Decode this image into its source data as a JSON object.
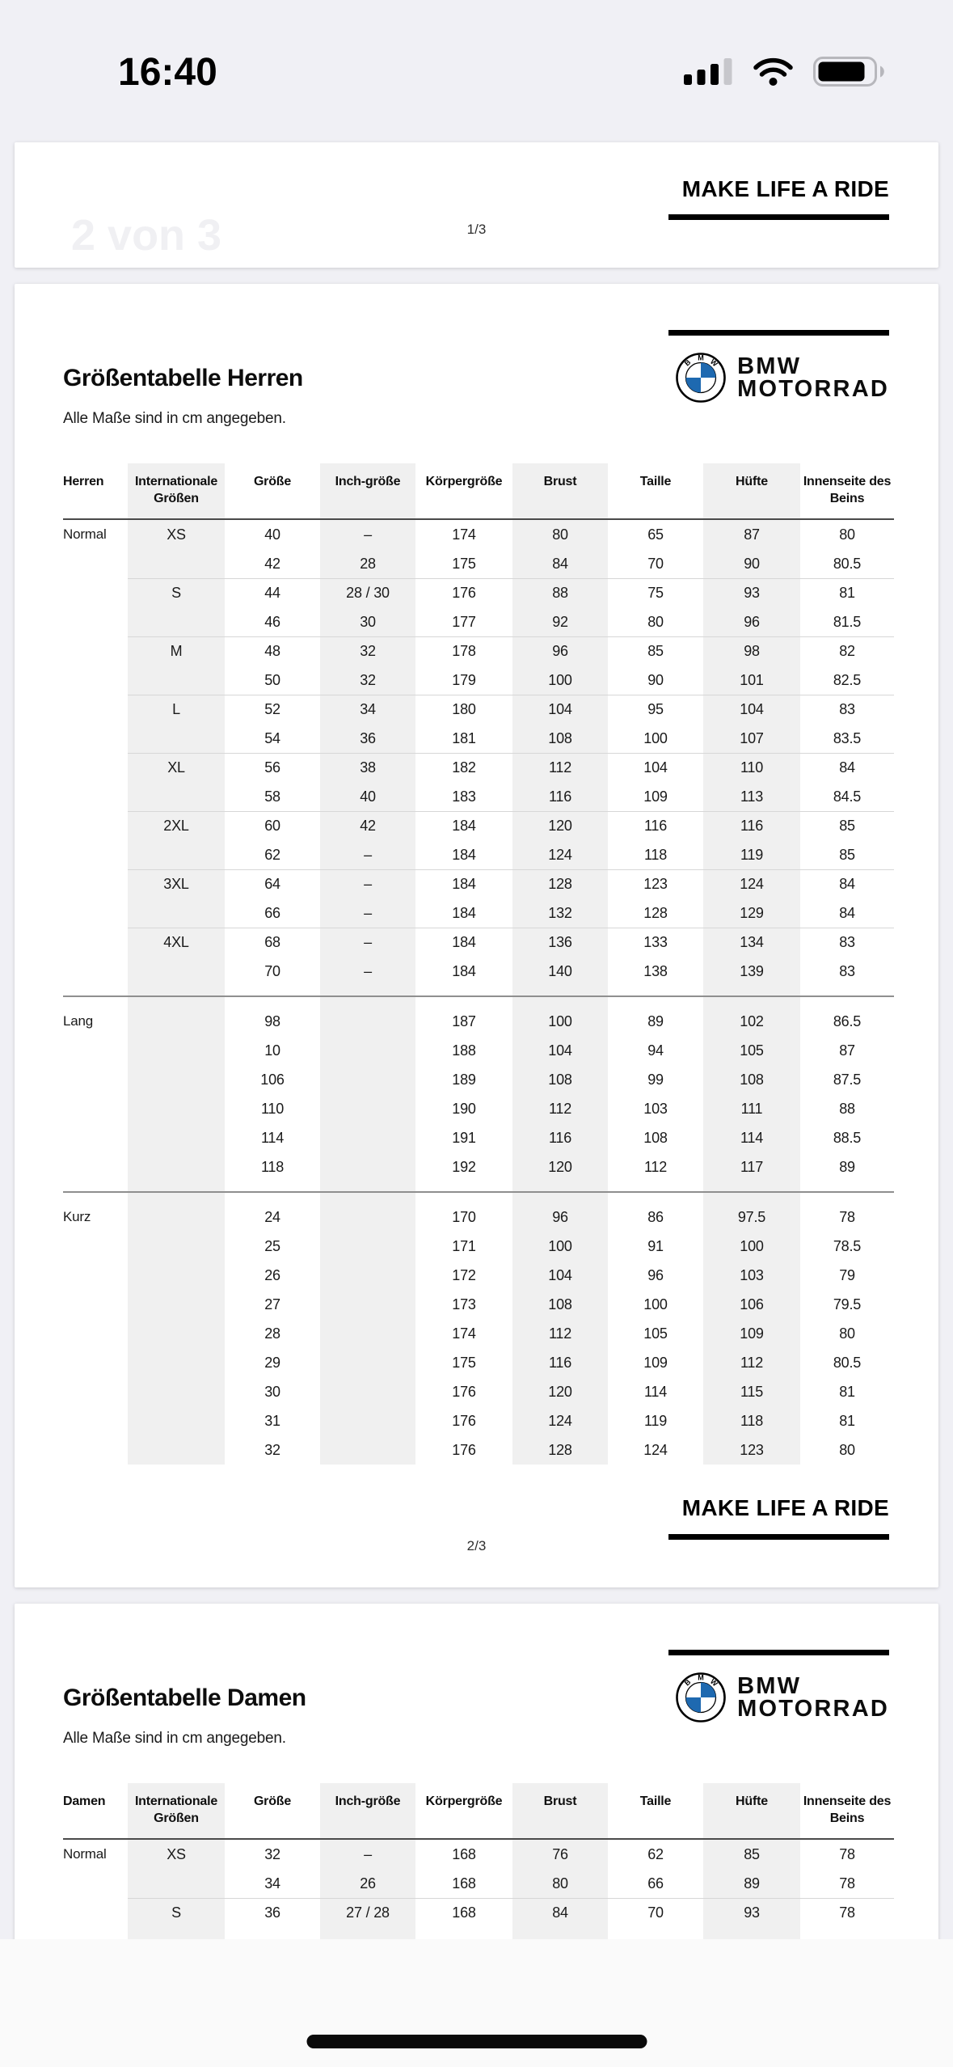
{
  "status_bar": {
    "time": "16:40"
  },
  "viewer": {
    "page_position_overlay": "2 von 3"
  },
  "brand": {
    "name": "BMW",
    "division": "MOTORRAD",
    "roundel_letters": [
      "B",
      "M",
      "W"
    ],
    "blue": "#1e69b0"
  },
  "page1": {
    "slogan": "MAKE LIFE A RIDE",
    "page_number": "1/3"
  },
  "page2": {
    "title": "Größentabelle Herren",
    "note": "Alle Maße sind in cm angegeben.",
    "slogan": "MAKE LIFE A RIDE",
    "page_number": "2/3",
    "table": {
      "headers": [
        "Herren",
        "Internationale Größen",
        "Größe",
        "Inch-größe",
        "Körpergröße",
        "Brust",
        "Taille",
        "Hüfte",
        "Innenseite des Beins"
      ],
      "sections": [
        {
          "name": "Normal",
          "rows": [
            [
              "Normal",
              "XS",
              "40",
              "–",
              "174",
              "80",
              "65",
              "87",
              "80"
            ],
            [
              "",
              "",
              "42",
              "28",
              "175",
              "84",
              "70",
              "90",
              "80.5"
            ],
            [
              "",
              "S",
              "44",
              "28 / 30",
              "176",
              "88",
              "75",
              "93",
              "81"
            ],
            [
              "",
              "",
              "46",
              "30",
              "177",
              "92",
              "80",
              "96",
              "81.5"
            ],
            [
              "",
              "M",
              "48",
              "32",
              "178",
              "96",
              "85",
              "98",
              "82"
            ],
            [
              "",
              "",
              "50",
              "32",
              "179",
              "100",
              "90",
              "101",
              "82.5"
            ],
            [
              "",
              "L",
              "52",
              "34",
              "180",
              "104",
              "95",
              "104",
              "83"
            ],
            [
              "",
              "",
              "54",
              "36",
              "181",
              "108",
              "100",
              "107",
              "83.5"
            ],
            [
              "",
              "XL",
              "56",
              "38",
              "182",
              "112",
              "104",
              "110",
              "84"
            ],
            [
              "",
              "",
              "58",
              "40",
              "183",
              "116",
              "109",
              "113",
              "84.5"
            ],
            [
              "",
              "2XL",
              "60",
              "42",
              "184",
              "120",
              "116",
              "116",
              "85"
            ],
            [
              "",
              "",
              "62",
              "–",
              "184",
              "124",
              "118",
              "119",
              "85"
            ],
            [
              "",
              "3XL",
              "64",
              "–",
              "184",
              "128",
              "123",
              "124",
              "84"
            ],
            [
              "",
              "",
              "66",
              "–",
              "184",
              "132",
              "128",
              "129",
              "84"
            ],
            [
              "",
              "4XL",
              "68",
              "–",
              "184",
              "136",
              "133",
              "134",
              "83"
            ],
            [
              "",
              "",
              "70",
              "–",
              "184",
              "140",
              "138",
              "139",
              "83"
            ]
          ]
        },
        {
          "name": "Lang",
          "rows": [
            [
              "Lang",
              "",
              "98",
              "",
              "187",
              "100",
              "89",
              "102",
              "86.5"
            ],
            [
              "",
              "",
              "10",
              "",
              "188",
              "104",
              "94",
              "105",
              "87"
            ],
            [
              "",
              "",
              "106",
              "",
              "189",
              "108",
              "99",
              "108",
              "87.5"
            ],
            [
              "",
              "",
              "110",
              "",
              "190",
              "112",
              "103",
              "111",
              "88"
            ],
            [
              "",
              "",
              "114",
              "",
              "191",
              "116",
              "108",
              "114",
              "88.5"
            ],
            [
              "",
              "",
              "118",
              "",
              "192",
              "120",
              "112",
              "117",
              "89"
            ]
          ]
        },
        {
          "name": "Kurz",
          "rows": [
            [
              "Kurz",
              "",
              "24",
              "",
              "170",
              "96",
              "86",
              "97.5",
              "78"
            ],
            [
              "",
              "",
              "25",
              "",
              "171",
              "100",
              "91",
              "100",
              "78.5"
            ],
            [
              "",
              "",
              "26",
              "",
              "172",
              "104",
              "96",
              "103",
              "79"
            ],
            [
              "",
              "",
              "27",
              "",
              "173",
              "108",
              "100",
              "106",
              "79.5"
            ],
            [
              "",
              "",
              "28",
              "",
              "174",
              "112",
              "105",
              "109",
              "80"
            ],
            [
              "",
              "",
              "29",
              "",
              "175",
              "116",
              "109",
              "112",
              "80.5"
            ],
            [
              "",
              "",
              "30",
              "",
              "176",
              "120",
              "114",
              "115",
              "81"
            ],
            [
              "",
              "",
              "31",
              "",
              "176",
              "124",
              "119",
              "118",
              "81"
            ],
            [
              "",
              "",
              "32",
              "",
              "176",
              "128",
              "124",
              "123",
              "80"
            ]
          ]
        }
      ]
    }
  },
  "page3": {
    "title": "Größentabelle Damen",
    "note": "Alle Maße sind in cm angegeben.",
    "table": {
      "headers": [
        "Damen",
        "Internationale Größen",
        "Größe",
        "Inch-größe",
        "Körpergröße",
        "Brust",
        "Taille",
        "Hüfte",
        "Innenseite des Beins"
      ],
      "sections": [
        {
          "name": "Normal",
          "rows": [
            [
              "Normal",
              "XS",
              "32",
              "–",
              "168",
              "76",
              "62",
              "85",
              "78"
            ],
            [
              "",
              "",
              "34",
              "26",
              "168",
              "80",
              "66",
              "89",
              "78"
            ],
            [
              "",
              "S",
              "36",
              "27 / 28",
              "168",
              "84",
              "70",
              "93",
              "78"
            ]
          ]
        }
      ]
    }
  }
}
